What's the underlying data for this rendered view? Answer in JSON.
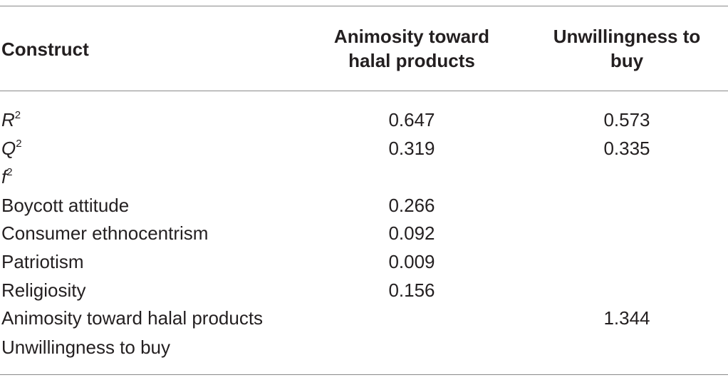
{
  "table": {
    "headers": {
      "construct": "Construct",
      "col2": "Animosity toward halal products",
      "col2_line1": "Animosity toward",
      "col2_line2": "halal products",
      "col3": "Unwillingness to buy",
      "col3_line1": "Unwillingness to",
      "col3_line2": "buy"
    },
    "rows": [
      {
        "label_base": "R",
        "label_sup": "2",
        "animosity": "0.647",
        "unwillingness": "0.573"
      },
      {
        "label_base": "Q",
        "label_sup": "2",
        "animosity": "0.319",
        "unwillingness": "0.335"
      },
      {
        "label_base": "f",
        "label_sup": "2",
        "animosity": "",
        "unwillingness": ""
      },
      {
        "label": "Boycott attitude",
        "animosity": "0.266",
        "unwillingness": ""
      },
      {
        "label": "Consumer ethnocentrism",
        "animosity": "0.092",
        "unwillingness": ""
      },
      {
        "label": "Patriotism",
        "animosity": "0.009",
        "unwillingness": ""
      },
      {
        "label": "Religiosity",
        "animosity": "0.156",
        "unwillingness": ""
      },
      {
        "label": "Animosity toward halal products",
        "animosity": "",
        "unwillingness": "1.344"
      },
      {
        "label": "Unwillingness to buy",
        "animosity": "",
        "unwillingness": ""
      }
    ]
  }
}
